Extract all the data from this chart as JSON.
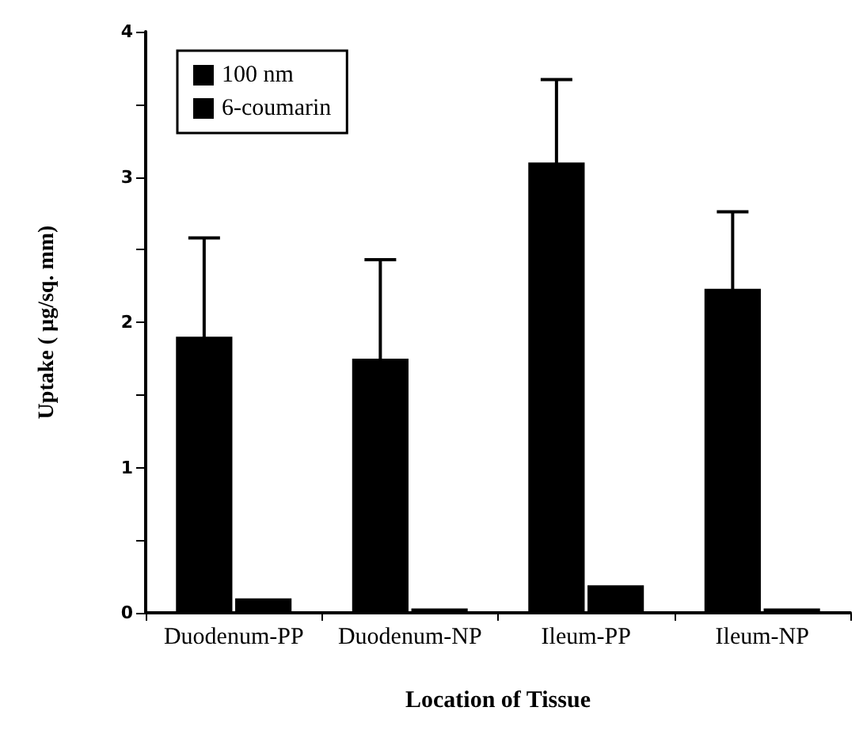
{
  "chart_data": {
    "type": "bar",
    "xlabel": "Location of Tissue",
    "ylabel": "Uptake ( µg/sq. mm)",
    "categories": [
      "Duodenum-PP",
      "Duodenum-NP",
      "Ileum-PP",
      "Ileum-NP"
    ],
    "series": [
      {
        "name": "100 nm",
        "color": "#000000",
        "values": [
          1.9,
          1.75,
          3.1,
          2.23
        ],
        "errors": [
          0.68,
          0.68,
          0.57,
          0.53
        ]
      },
      {
        "name": "6-coumarin",
        "color": "#000000",
        "values": [
          0.1,
          0.03,
          0.19,
          0.03
        ]
      }
    ],
    "ylim": [
      0,
      4
    ],
    "yticks": [
      0,
      {
        "value": 0.5,
        "label": null
      },
      1,
      {
        "value": 1.5,
        "label": null
      },
      2,
      {
        "value": 2.5,
        "label": null
      },
      3,
      {
        "value": 3.5,
        "label": null
      },
      4
    ],
    "grid": false,
    "legend": "top left"
  }
}
